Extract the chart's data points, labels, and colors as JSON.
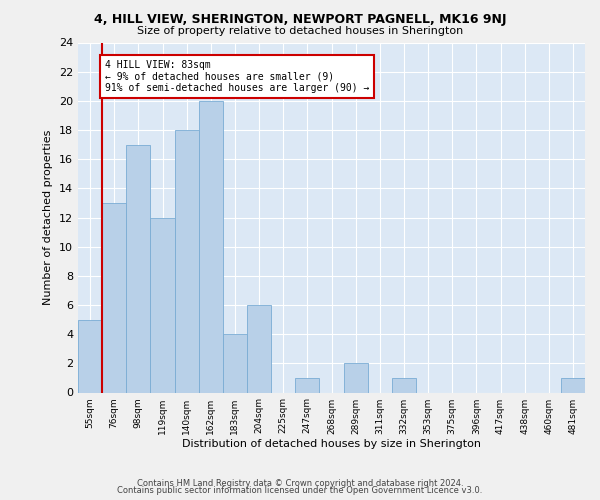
{
  "title1": "4, HILL VIEW, SHERINGTON, NEWPORT PAGNELL, MK16 9NJ",
  "title2": "Size of property relative to detached houses in Sherington",
  "xlabel": "Distribution of detached houses by size in Sherington",
  "ylabel": "Number of detached properties",
  "bin_labels": [
    "55sqm",
    "76sqm",
    "98sqm",
    "119sqm",
    "140sqm",
    "162sqm",
    "183sqm",
    "204sqm",
    "225sqm",
    "247sqm",
    "268sqm",
    "289sqm",
    "311sqm",
    "332sqm",
    "353sqm",
    "375sqm",
    "396sqm",
    "417sqm",
    "438sqm",
    "460sqm",
    "481sqm"
  ],
  "bar_heights": [
    5,
    13,
    17,
    12,
    18,
    20,
    4,
    6,
    0,
    1,
    0,
    2,
    0,
    1,
    0,
    0,
    0,
    0,
    0,
    0,
    1
  ],
  "bar_color": "#b8d0e8",
  "bar_edge_color": "#7aacd4",
  "background_color": "#dce8f5",
  "grid_color": "#ffffff",
  "vline_x": 1,
  "vline_color": "#cc0000",
  "annotation_text": "4 HILL VIEW: 83sqm\n← 9% of detached houses are smaller (9)\n91% of semi-detached houses are larger (90) →",
  "annotation_box_color": "#ffffff",
  "annotation_box_edge": "#cc0000",
  "ylim": [
    0,
    24
  ],
  "yticks": [
    0,
    2,
    4,
    6,
    8,
    10,
    12,
    14,
    16,
    18,
    20,
    22,
    24
  ],
  "footer1": "Contains HM Land Registry data © Crown copyright and database right 2024.",
  "footer2": "Contains public sector information licensed under the Open Government Licence v3.0.",
  "fig_bg": "#f0f0f0"
}
